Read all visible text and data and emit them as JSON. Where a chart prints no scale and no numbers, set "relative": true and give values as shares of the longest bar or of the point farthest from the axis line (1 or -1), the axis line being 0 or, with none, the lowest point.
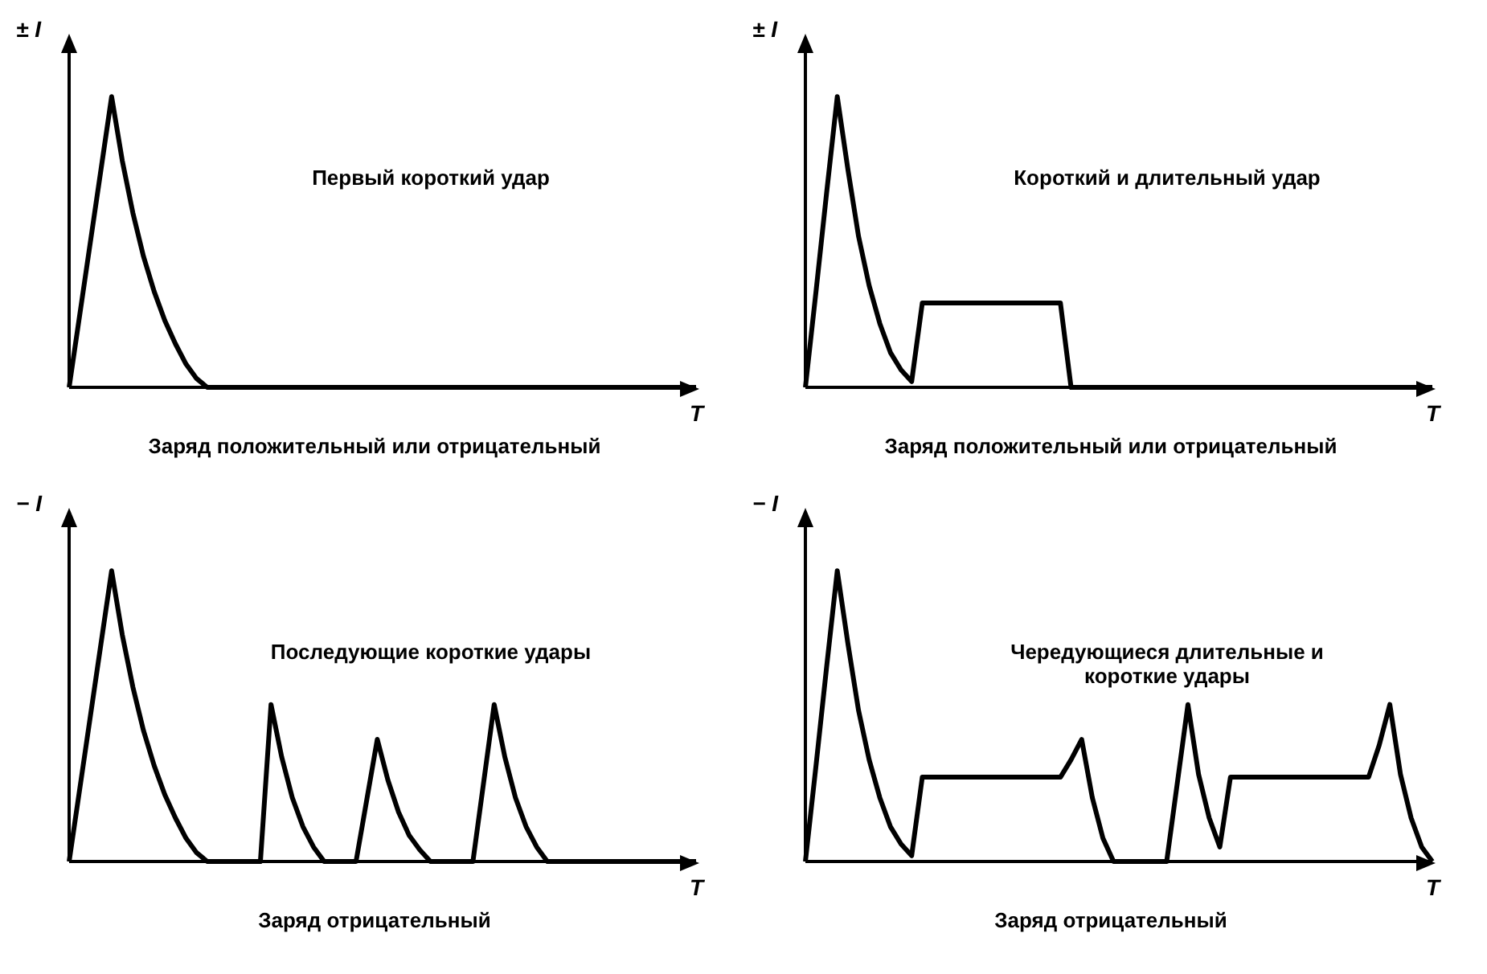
{
  "chart_data": [
    {
      "type": "line",
      "relative": true,
      "ylabel": "± I",
      "xlabel": "T",
      "marker": "none",
      "line_style": "solid",
      "grid": false,
      "legend": false,
      "annotations": [
        "Первый короткий удар",
        "Заряд положительный или отрицательный"
      ],
      "categories": [
        null,
        null,
        null,
        null,
        null,
        null,
        null,
        null,
        null,
        null,
        null,
        null,
        null,
        null,
        null,
        null,
        null,
        null,
        null,
        null,
        null,
        null,
        null,
        null,
        null,
        null,
        null,
        null,
        null,
        null,
        null,
        null,
        null,
        null,
        null,
        null,
        null,
        null,
        null,
        null,
        null,
        null,
        null,
        null,
        null,
        null,
        null,
        null,
        null,
        null,
        null,
        null,
        null,
        null,
        null,
        null,
        null,
        null,
        null,
        null
      ],
      "series": [
        {
          "color": "#000000",
          "values": [
            0,
            0.25,
            0.5,
            0.75,
            1,
            0.78,
            0.6,
            0.45,
            0.33,
            0.23,
            0.15,
            0.08,
            0.03,
            0,
            0,
            0,
            0,
            0,
            0,
            0,
            0,
            0,
            0,
            0,
            0,
            0,
            0,
            0,
            0,
            0,
            0,
            0,
            0,
            0,
            0,
            0,
            0,
            0,
            0,
            0,
            0,
            0,
            0,
            0,
            0,
            0,
            0,
            0,
            0,
            0,
            0,
            0,
            0,
            0,
            0,
            0,
            0,
            0,
            0,
            0
          ]
        }
      ]
    },
    {
      "type": "line",
      "relative": true,
      "ylabel": "± I",
      "xlabel": "T",
      "marker": "none",
      "line_style": "solid",
      "grid": false,
      "legend": false,
      "annotations": [
        "Короткий и длительный удар",
        "Заряд положительный или отрицательный"
      ],
      "categories": [
        null,
        null,
        null,
        null,
        null,
        null,
        null,
        null,
        null,
        null,
        null,
        null,
        null,
        null,
        null,
        null,
        null,
        null,
        null,
        null,
        null,
        null,
        null,
        null,
        null,
        null,
        null,
        null,
        null,
        null,
        null,
        null,
        null,
        null,
        null,
        null,
        null,
        null,
        null,
        null,
        null,
        null,
        null,
        null,
        null,
        null,
        null,
        null,
        null,
        null,
        null,
        null,
        null,
        null,
        null,
        null,
        null,
        null,
        null,
        null
      ],
      "series": [
        {
          "color": "#000000",
          "values": [
            0,
            0.33,
            0.67,
            1,
            0.75,
            0.52,
            0.35,
            0.22,
            0.12,
            0.06,
            0.02,
            0.29,
            0.29,
            0.29,
            0.29,
            0.29,
            0.29,
            0.29,
            0.29,
            0.29,
            0.29,
            0.29,
            0.29,
            0.29,
            0.29,
            0,
            0,
            0,
            0,
            0,
            0,
            0,
            0,
            0,
            0,
            0,
            0,
            0,
            0,
            0,
            0,
            0,
            0,
            0,
            0,
            0,
            0,
            0,
            0,
            0,
            0,
            0,
            0,
            0,
            0,
            0,
            0,
            0,
            0,
            0
          ]
        }
      ]
    },
    {
      "type": "line",
      "relative": true,
      "ylabel": "− I",
      "xlabel": "T",
      "marker": "none",
      "line_style": "solid",
      "grid": false,
      "legend": false,
      "annotations": [
        "Последующие короткие удары",
        "Заряд отрицательный"
      ],
      "categories": [
        null,
        null,
        null,
        null,
        null,
        null,
        null,
        null,
        null,
        null,
        null,
        null,
        null,
        null,
        null,
        null,
        null,
        null,
        null,
        null,
        null,
        null,
        null,
        null,
        null,
        null,
        null,
        null,
        null,
        null,
        null,
        null,
        null,
        null,
        null,
        null,
        null,
        null,
        null,
        null,
        null,
        null,
        null,
        null,
        null,
        null,
        null,
        null,
        null,
        null,
        null,
        null,
        null,
        null,
        null,
        null,
        null,
        null,
        null,
        null
      ],
      "series": [
        {
          "color": "#000000",
          "values": [
            0,
            0.25,
            0.5,
            0.75,
            1,
            0.78,
            0.6,
            0.45,
            0.33,
            0.23,
            0.15,
            0.08,
            0.03,
            0,
            0,
            0,
            0,
            0,
            0,
            0.54,
            0.36,
            0.22,
            0.12,
            0.05,
            0,
            0,
            0,
            0,
            0.21,
            0.42,
            0.28,
            0.17,
            0.09,
            0.04,
            0,
            0,
            0,
            0,
            0,
            0.27,
            0.54,
            0.36,
            0.22,
            0.12,
            0.05,
            0,
            0,
            0,
            0,
            0,
            0,
            0,
            0,
            0,
            0,
            0,
            0,
            0,
            0,
            0
          ]
        }
      ]
    },
    {
      "type": "line",
      "relative": true,
      "ylabel": "− I",
      "xlabel": "T",
      "marker": "none",
      "line_style": "solid",
      "grid": false,
      "legend": false,
      "annotations": [
        "Чередующиеся длительные и короткие удары",
        "Заряд отрицательный"
      ],
      "categories": [
        null,
        null,
        null,
        null,
        null,
        null,
        null,
        null,
        null,
        null,
        null,
        null,
        null,
        null,
        null,
        null,
        null,
        null,
        null,
        null,
        null,
        null,
        null,
        null,
        null,
        null,
        null,
        null,
        null,
        null,
        null,
        null,
        null,
        null,
        null,
        null,
        null,
        null,
        null,
        null,
        null,
        null,
        null,
        null,
        null,
        null,
        null,
        null,
        null,
        null,
        null,
        null,
        null,
        null,
        null,
        null,
        null,
        null,
        null,
        null
      ],
      "series": [
        {
          "color": "#000000",
          "values": [
            0,
            0.33,
            0.67,
            1,
            0.75,
            0.52,
            0.35,
            0.22,
            0.12,
            0.06,
            0.02,
            0.29,
            0.29,
            0.29,
            0.29,
            0.29,
            0.29,
            0.29,
            0.29,
            0.29,
            0.29,
            0.29,
            0.29,
            0.29,
            0.29,
            0.35,
            0.42,
            0.22,
            0.08,
            0,
            0,
            0,
            0,
            0,
            0,
            0.27,
            0.54,
            0.3,
            0.15,
            0.05,
            0.29,
            0.29,
            0.29,
            0.29,
            0.29,
            0.29,
            0.29,
            0.29,
            0.29,
            0.29,
            0.29,
            0.29,
            0.29,
            0.29,
            0.4,
            0.54,
            0.3,
            0.15,
            0.05,
            0
          ]
        }
      ]
    }
  ]
}
